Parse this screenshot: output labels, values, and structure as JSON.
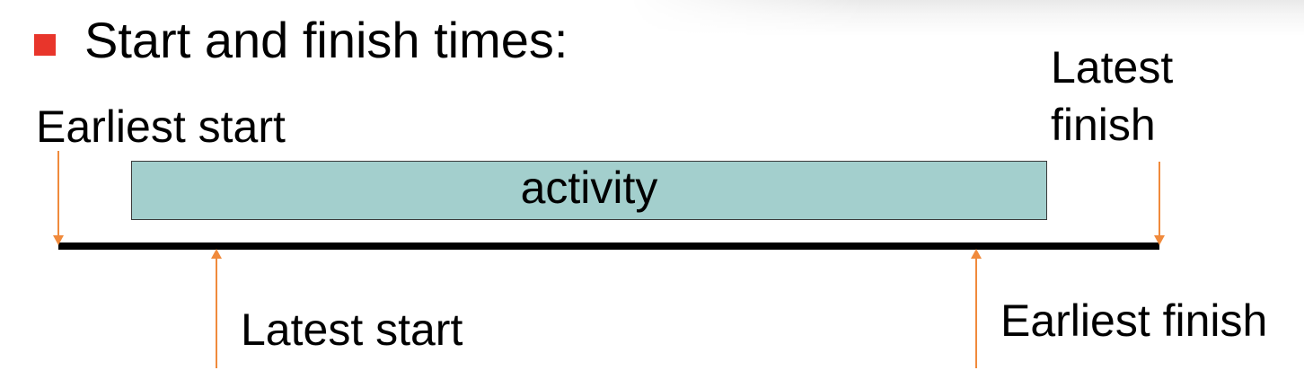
{
  "heading": {
    "text": "Start and finish times:",
    "bullet_color": "#e8352b"
  },
  "diagram": {
    "activity_label": "activity",
    "activity_fill": "#a3cfcd",
    "arrow_color": "#f08a3c",
    "labels": {
      "earliest_start": "Earliest start",
      "latest_finish_line1": "Latest",
      "latest_finish_line2": "finish",
      "latest_start": "Latest start",
      "earliest_finish": "Earliest finish"
    }
  }
}
